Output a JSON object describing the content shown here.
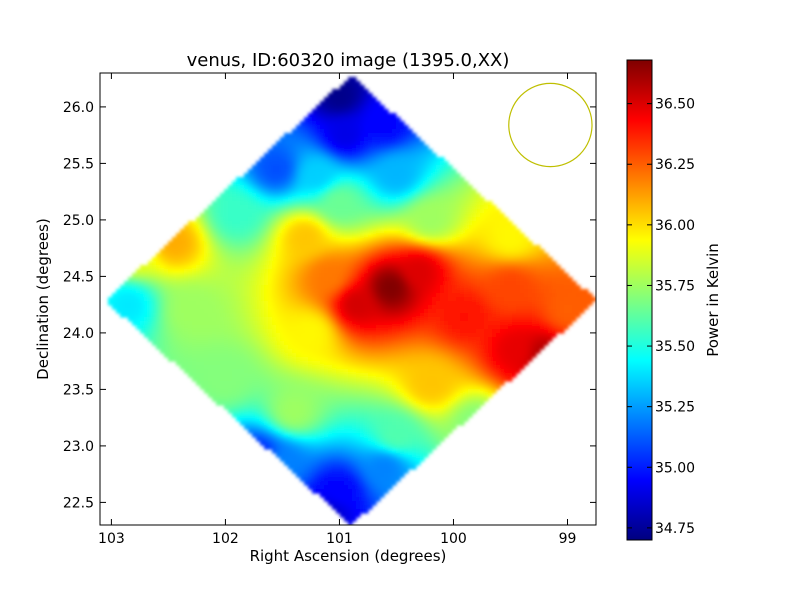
{
  "chart_data": {
    "type": "heatmap",
    "title": "venus, ID:60320 image (1395.0,XX)",
    "xlabel": "Right Ascension (degrees)",
    "ylabel": "Declination (degrees)",
    "colorbar_label": "Power in Kelvin",
    "xlim": [
      103.1,
      98.75
    ],
    "ylim": [
      22.3,
      26.3
    ],
    "x_ticks": [
      103,
      102,
      101,
      100,
      99
    ],
    "x_tick_labels": [
      "103",
      "102",
      "101",
      "100",
      "99"
    ],
    "y_ticks": [
      22.5,
      23.0,
      23.5,
      24.0,
      24.5,
      25.0,
      25.5,
      26.0
    ],
    "y_tick_labels": [
      "22.5",
      "23.0",
      "23.5",
      "24.0",
      "24.5",
      "25.0",
      "25.5",
      "26.0"
    ],
    "colorbar_range": [
      34.7,
      36.68
    ],
    "colorbar_ticks": [
      34.75,
      35.0,
      35.25,
      35.5,
      35.75,
      36.0,
      36.25,
      36.5
    ],
    "colorbar_tick_labels": [
      "34.75",
      "35.00",
      "35.25",
      "35.50",
      "35.75",
      "36.00",
      "36.25",
      "36.50"
    ],
    "colormap": "jet",
    "map_extent": {
      "ra_range": [
        98.75,
        103.05
      ],
      "dec_range": [
        22.3,
        26.28
      ],
      "center": [
        100.9,
        24.29
      ]
    },
    "field_points": [
      {
        "ra": 100.55,
        "dec": 24.4,
        "value": 36.68
      },
      {
        "ra": 100.85,
        "dec": 24.25,
        "value": 36.52
      },
      {
        "ra": 100.3,
        "dec": 24.55,
        "value": 36.5
      },
      {
        "ra": 99.2,
        "dec": 23.8,
        "value": 36.58
      },
      {
        "ra": 99.45,
        "dec": 23.85,
        "value": 36.48
      },
      {
        "ra": 99.9,
        "dec": 24.15,
        "value": 36.4
      },
      {
        "ra": 99.5,
        "dec": 24.4,
        "value": 36.3
      },
      {
        "ra": 99.0,
        "dec": 24.2,
        "value": 36.25
      },
      {
        "ra": 101.1,
        "dec": 24.5,
        "value": 36.2
      },
      {
        "ra": 101.3,
        "dec": 24.85,
        "value": 36.05
      },
      {
        "ra": 101.25,
        "dec": 24.0,
        "value": 35.95
      },
      {
        "ra": 100.2,
        "dec": 23.55,
        "value": 36.05
      },
      {
        "ra": 102.45,
        "dec": 24.8,
        "value": 36.1
      },
      {
        "ra": 102.8,
        "dec": 24.7,
        "value": 35.9
      },
      {
        "ra": 102.3,
        "dec": 24.2,
        "value": 35.75
      },
      {
        "ra": 102.0,
        "dec": 23.6,
        "value": 35.7
      },
      {
        "ra": 101.4,
        "dec": 23.3,
        "value": 35.75
      },
      {
        "ra": 100.5,
        "dec": 23.1,
        "value": 35.6
      },
      {
        "ra": 99.8,
        "dec": 23.2,
        "value": 35.7
      },
      {
        "ra": 102.85,
        "dec": 24.25,
        "value": 35.4
      },
      {
        "ra": 101.9,
        "dec": 25.05,
        "value": 35.55
      },
      {
        "ra": 101.0,
        "dec": 25.15,
        "value": 35.65
      },
      {
        "ra": 100.2,
        "dec": 25.0,
        "value": 35.75
      },
      {
        "ra": 99.5,
        "dec": 24.85,
        "value": 35.95
      },
      {
        "ra": 101.2,
        "dec": 25.4,
        "value": 35.35
      },
      {
        "ra": 100.5,
        "dec": 25.4,
        "value": 35.3
      },
      {
        "ra": 101.55,
        "dec": 25.45,
        "value": 35.1
      },
      {
        "ra": 100.95,
        "dec": 25.75,
        "value": 34.9
      },
      {
        "ra": 100.6,
        "dec": 25.85,
        "value": 34.95
      },
      {
        "ra": 101.0,
        "dec": 26.1,
        "value": 34.72
      },
      {
        "ra": 101.5,
        "dec": 22.85,
        "value": 35.2
      },
      {
        "ra": 101.0,
        "dec": 22.6,
        "value": 34.95
      },
      {
        "ra": 100.6,
        "dec": 22.8,
        "value": 35.2
      },
      {
        "ra": 101.1,
        "dec": 22.4,
        "value": 34.85
      },
      {
        "ra": 101.7,
        "dec": 22.9,
        "value": 35.0
      }
    ],
    "beam_circle": {
      "ra": 99.15,
      "dec": 25.84,
      "radius_deg": 0.365
    },
    "beam_color": "#bfbf00"
  }
}
